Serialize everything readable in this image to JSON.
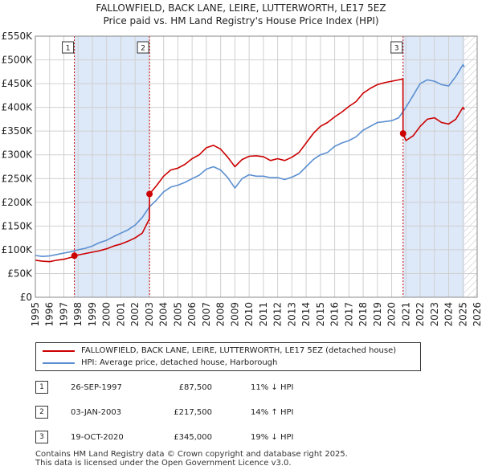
{
  "title_line1": "FALLOWFIELD, BACK LANE, LEIRE, LUTTERWORTH, LE17 5EZ",
  "title_line2": "Price paid vs. HM Land Registry's House Price Index (HPI)",
  "colors": {
    "price_paid": "#cc0000",
    "hpi": "#5b8fd1",
    "shade": "#dde8f8",
    "grid": "#d0d0d0",
    "vline": "#cc0000"
  },
  "chart_data": {
    "type": "line",
    "title": "Price paid vs. HM Land Registry's House Price Index (HPI)",
    "xlabel": "",
    "ylabel": "",
    "xlim": [
      1995,
      2026
    ],
    "ylim": [
      0,
      550000
    ],
    "y_ticks": [
      0,
      50000,
      100000,
      150000,
      200000,
      250000,
      300000,
      350000,
      400000,
      450000,
      500000,
      550000
    ],
    "y_tick_labels": [
      "£0",
      "£50K",
      "£100K",
      "£150K",
      "£200K",
      "£250K",
      "£300K",
      "£350K",
      "£400K",
      "£450K",
      "£500K",
      "£550K"
    ],
    "x_ticks": [
      1995,
      1996,
      1997,
      1998,
      1999,
      2000,
      2001,
      2002,
      2003,
      2004,
      2005,
      2006,
      2007,
      2008,
      2009,
      2010,
      2011,
      2012,
      2013,
      2014,
      2015,
      2016,
      2017,
      2018,
      2019,
      2020,
      2021,
      2022,
      2023,
      2024,
      2025,
      2026
    ],
    "x_tick_labels": [
      "1995",
      "1996",
      "1997",
      "1998",
      "1999",
      "2000",
      "2001",
      "2002",
      "2003",
      "2004",
      "2005",
      "2006",
      "2007",
      "2008",
      "2009",
      "2010",
      "2011",
      "2012",
      "2013",
      "2014",
      "2015",
      "2016",
      "2017",
      "2018",
      "2019",
      "2020",
      "2021",
      "2022",
      "2023",
      "2024",
      "2025",
      "2026"
    ],
    "shaded_ranges": [
      [
        1997.74,
        2003.01
      ],
      [
        2020.8,
        2025.1
      ]
    ],
    "hatched_from": 2025.1,
    "series": [
      {
        "name": "FALLOWFIELD, BACK LANE, LEIRE, LUTTERWORTH, LE17 5EZ (detached house)",
        "color": "#cc0000",
        "x": [
          1995.0,
          1995.5,
          1996.0,
          1996.5,
          1997.0,
          1997.5,
          1997.74,
          1998.0,
          1998.5,
          1999.0,
          1999.5,
          2000.0,
          2000.5,
          2001.0,
          2001.5,
          2002.0,
          2002.5,
          2003.0,
          2003.01,
          2003.5,
          2004.0,
          2004.5,
          2005.0,
          2005.5,
          2006.0,
          2006.5,
          2007.0,
          2007.5,
          2008.0,
          2008.5,
          2009.0,
          2009.5,
          2010.0,
          2010.5,
          2011.0,
          2011.5,
          2012.0,
          2012.5,
          2013.0,
          2013.5,
          2014.0,
          2014.5,
          2015.0,
          2015.5,
          2016.0,
          2016.5,
          2017.0,
          2017.5,
          2018.0,
          2018.5,
          2019.0,
          2019.5,
          2020.0,
          2020.5,
          2020.79,
          2020.8,
          2021.0,
          2021.5,
          2022.0,
          2022.5,
          2023.0,
          2023.5,
          2024.0,
          2024.5,
          2025.0,
          2025.1
        ],
        "values": [
          78000,
          76000,
          75000,
          78000,
          80000,
          84000,
          87500,
          89000,
          92000,
          95000,
          98000,
          102000,
          108000,
          112000,
          118000,
          125000,
          135000,
          165000,
          217500,
          235000,
          255000,
          268000,
          272000,
          280000,
          292000,
          300000,
          315000,
          320000,
          312000,
          295000,
          275000,
          290000,
          297000,
          298000,
          296000,
          288000,
          292000,
          288000,
          295000,
          305000,
          325000,
          345000,
          360000,
          368000,
          380000,
          390000,
          402000,
          412000,
          430000,
          440000,
          448000,
          452000,
          455000,
          458000,
          460000,
          345000,
          330000,
          340000,
          360000,
          375000,
          378000,
          368000,
          365000,
          375000,
          400000,
          395000
        ]
      },
      {
        "name": "HPI: Average price, detached house, Harborough",
        "color": "#5b8fd1",
        "x": [
          1995.0,
          1995.5,
          1996.0,
          1996.5,
          1997.0,
          1997.5,
          1998.0,
          1998.5,
          1999.0,
          1999.5,
          2000.0,
          2000.5,
          2001.0,
          2001.5,
          2002.0,
          2002.5,
          2003.0,
          2003.5,
          2004.0,
          2004.5,
          2005.0,
          2005.5,
          2006.0,
          2006.5,
          2007.0,
          2007.5,
          2008.0,
          2008.5,
          2009.0,
          2009.5,
          2010.0,
          2010.5,
          2011.0,
          2011.5,
          2012.0,
          2012.5,
          2013.0,
          2013.5,
          2014.0,
          2014.5,
          2015.0,
          2015.5,
          2016.0,
          2016.5,
          2017.0,
          2017.5,
          2018.0,
          2018.5,
          2019.0,
          2019.5,
          2020.0,
          2020.5,
          2021.0,
          2021.5,
          2022.0,
          2022.5,
          2023.0,
          2023.5,
          2024.0,
          2024.5,
          2025.0,
          2025.1
        ],
        "values": [
          88000,
          86000,
          87000,
          90000,
          93000,
          96000,
          100000,
          103000,
          108000,
          115000,
          120000,
          128000,
          135000,
          142000,
          152000,
          168000,
          190000,
          205000,
          222000,
          232000,
          236000,
          242000,
          250000,
          257000,
          270000,
          275000,
          268000,
          252000,
          230000,
          250000,
          258000,
          255000,
          255000,
          252000,
          252000,
          248000,
          253000,
          260000,
          275000,
          290000,
          300000,
          305000,
          318000,
          325000,
          330000,
          338000,
          352000,
          360000,
          368000,
          370000,
          372000,
          378000,
          400000,
          425000,
          450000,
          458000,
          455000,
          448000,
          445000,
          465000,
          490000,
          485000
        ]
      }
    ],
    "markers": [
      {
        "label": "1",
        "x": 1997.74,
        "y": 87500
      },
      {
        "label": "2",
        "x": 2003.01,
        "y": 217500
      },
      {
        "label": "3",
        "x": 2020.8,
        "y": 345000
      }
    ]
  },
  "legend": {
    "price_paid": "FALLOWFIELD, BACK LANE, LEIRE, LUTTERWORTH, LE17 5EZ (detached house)",
    "hpi": "HPI: Average price, detached house, Harborough"
  },
  "transactions": [
    {
      "num": "1",
      "date": "26-SEP-1997",
      "price": "£87,500",
      "hpi": "11% ↓ HPI"
    },
    {
      "num": "2",
      "date": "03-JAN-2003",
      "price": "£217,500",
      "hpi": "14% ↑ HPI"
    },
    {
      "num": "3",
      "date": "19-OCT-2020",
      "price": "£345,000",
      "hpi": "19% ↓ HPI"
    }
  ],
  "footer": {
    "line1": "Contains HM Land Registry data © Crown copyright and database right 2025.",
    "line2": "This data is licensed under the Open Government Licence v3.0."
  }
}
